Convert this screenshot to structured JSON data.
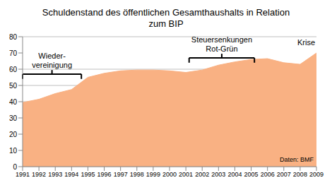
{
  "chart_data": {
    "type": "area",
    "title": "Schuldenstand des öffentlichen Gesamthaushalts in Relation\nzum BIP",
    "x": [
      1991,
      1992,
      1993,
      1994,
      1995,
      1996,
      1997,
      1998,
      1999,
      2000,
      2001,
      2002,
      2003,
      2004,
      2005,
      2006,
      2007,
      2008,
      2009
    ],
    "values": [
      39.5,
      41.5,
      45,
      47.5,
      55,
      57.5,
      59,
      59.5,
      59.5,
      59,
      58,
      59.5,
      62.5,
      64.5,
      66,
      66.5,
      64,
      63,
      70
    ],
    "color": "#f9b183",
    "xlim": [
      1991,
      2009
    ],
    "xticks": [
      1991,
      1992,
      1993,
      1994,
      1995,
      1996,
      1997,
      1998,
      1999,
      2000,
      2001,
      2002,
      2003,
      2004,
      2005,
      2006,
      2007,
      2008,
      2009
    ],
    "ylim": [
      0,
      80
    ],
    "yticks": [
      0,
      10,
      20,
      30,
      40,
      50,
      60,
      70,
      80
    ],
    "grid": true,
    "annotations": [
      {
        "text": "Wieder-\nvereinigung",
        "x_range": [
          1991,
          1994.6
        ]
      },
      {
        "text": "Steuersenkungen\nRot-Grün",
        "x_range": [
          2001.2,
          2005.2
        ]
      },
      {
        "text": "Krise",
        "x": 2009
      }
    ],
    "source": "Daten: BMF"
  }
}
